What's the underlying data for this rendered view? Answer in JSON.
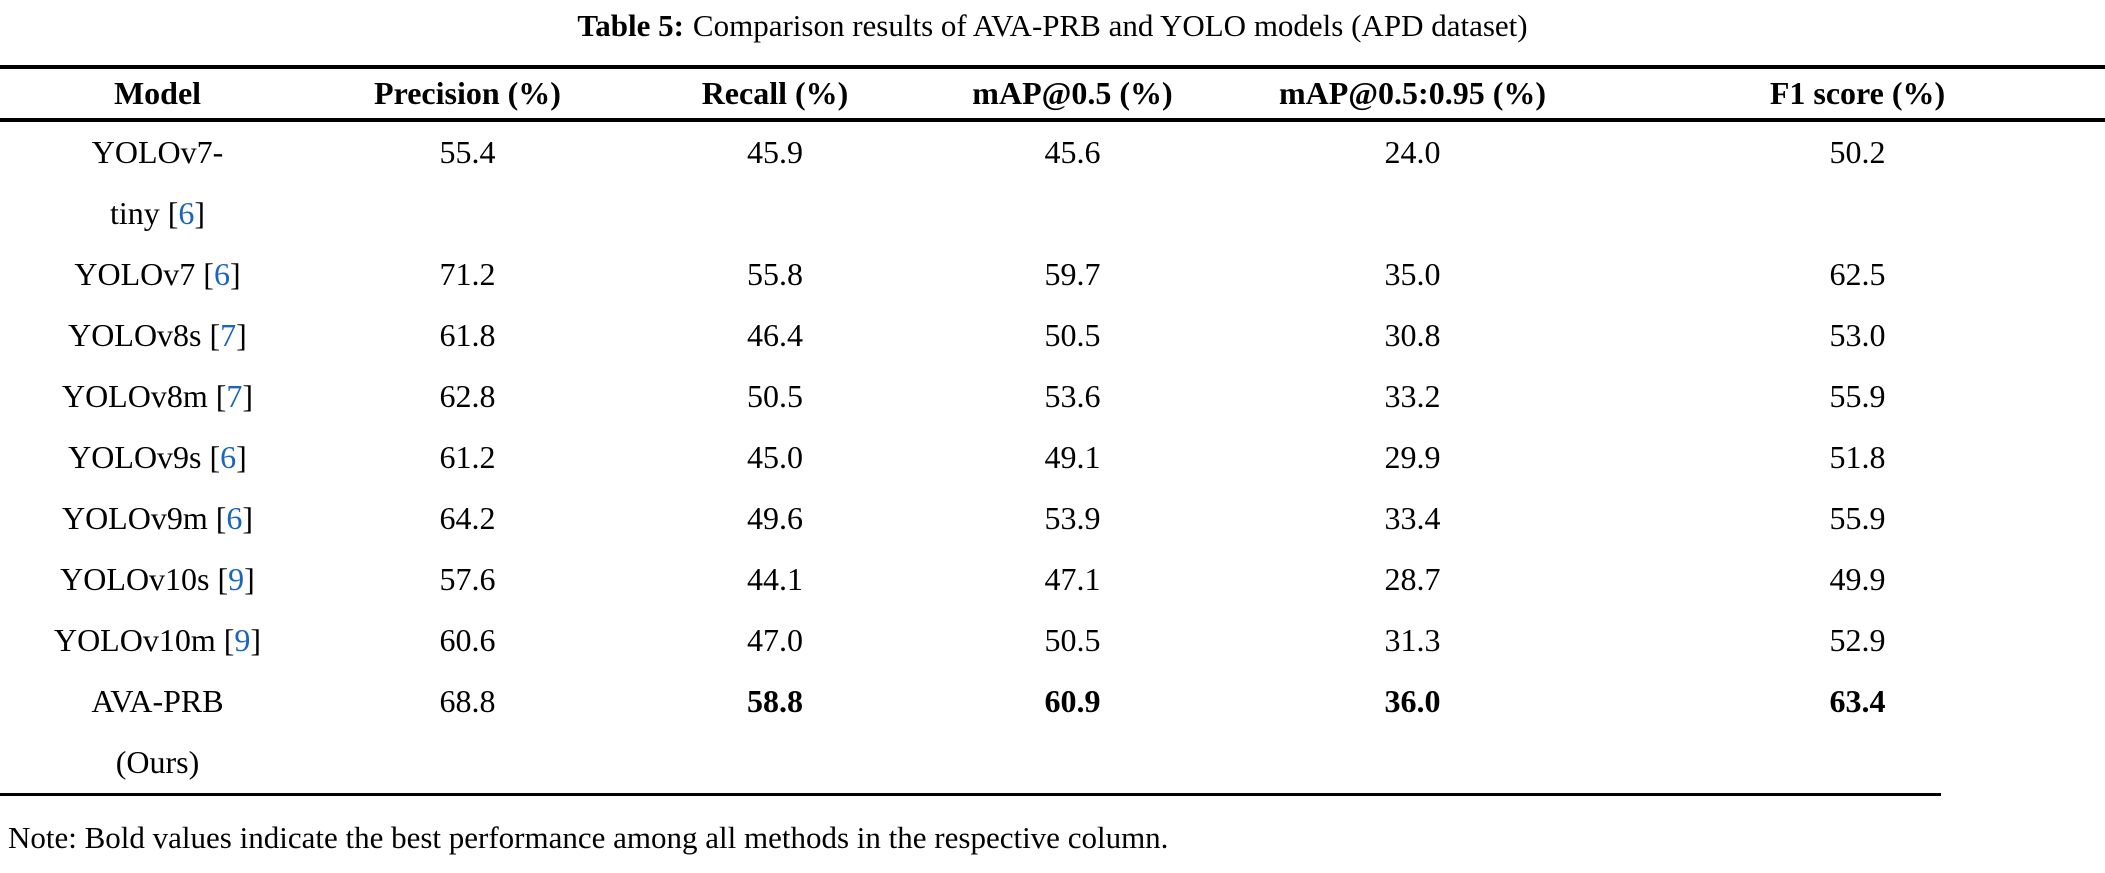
{
  "caption": {
    "label": "Table 5:",
    "text": "Comparison results of AVA-PRB and YOLO models (APD dataset)"
  },
  "table": {
    "columns": [
      "Model",
      "Precision (%)",
      "Recall (%)",
      "mAP@0.5 (%)",
      "mAP@0.5:0.95 (%)",
      "F1 score (%)"
    ],
    "rows": [
      {
        "lines": [
          "YOLOv7-",
          "tiny"
        ],
        "ref": "6",
        "ref_line": 2,
        "values": [
          "55.4",
          "45.9",
          "45.6",
          "24.0",
          "50.2"
        ],
        "bold": [
          false,
          false,
          false,
          false,
          false
        ]
      },
      {
        "lines": [
          "YOLOv7"
        ],
        "ref": "6",
        "ref_line": 1,
        "values": [
          "71.2",
          "55.8",
          "59.7",
          "35.0",
          "62.5"
        ],
        "bold": [
          false,
          false,
          false,
          false,
          false
        ]
      },
      {
        "lines": [
          "YOLOv8s"
        ],
        "ref": "7",
        "ref_line": 1,
        "values": [
          "61.8",
          "46.4",
          "50.5",
          "30.8",
          "53.0"
        ],
        "bold": [
          false,
          false,
          false,
          false,
          false
        ]
      },
      {
        "lines": [
          "YOLOv8m"
        ],
        "ref": "7",
        "ref_line": 1,
        "values": [
          "62.8",
          "50.5",
          "53.6",
          "33.2",
          "55.9"
        ],
        "bold": [
          false,
          false,
          false,
          false,
          false
        ]
      },
      {
        "lines": [
          "YOLOv9s"
        ],
        "ref": "6",
        "ref_line": 1,
        "values": [
          "61.2",
          "45.0",
          "49.1",
          "29.9",
          "51.8"
        ],
        "bold": [
          false,
          false,
          false,
          false,
          false
        ]
      },
      {
        "lines": [
          "YOLOv9m"
        ],
        "ref": "6",
        "ref_line": 1,
        "values": [
          "64.2",
          "49.6",
          "53.9",
          "33.4",
          "55.9"
        ],
        "bold": [
          false,
          false,
          false,
          false,
          false
        ]
      },
      {
        "lines": [
          "YOLOv10s"
        ],
        "ref": "9",
        "ref_line": 1,
        "values": [
          "57.6",
          "44.1",
          "47.1",
          "28.7",
          "49.9"
        ],
        "bold": [
          false,
          false,
          false,
          false,
          false
        ]
      },
      {
        "lines": [
          "YOLOv10m"
        ],
        "ref": "9",
        "ref_line": 1,
        "values": [
          "60.6",
          "47.0",
          "50.5",
          "31.3",
          "52.9"
        ],
        "bold": [
          false,
          false,
          false,
          false,
          false
        ]
      },
      {
        "lines": [
          "AVA-PRB",
          "(Ours)"
        ],
        "ref": null,
        "ref_line": 0,
        "values": [
          "68.8",
          "58.8",
          "60.9",
          "36.0",
          "63.4"
        ],
        "bold": [
          false,
          true,
          true,
          true,
          true
        ]
      }
    ]
  },
  "note": "Note: Bold values indicate the best performance among all methods in the respective column.",
  "colors": {
    "citation": "#1a65bd",
    "text": "#000000",
    "background": "#ffffff"
  }
}
